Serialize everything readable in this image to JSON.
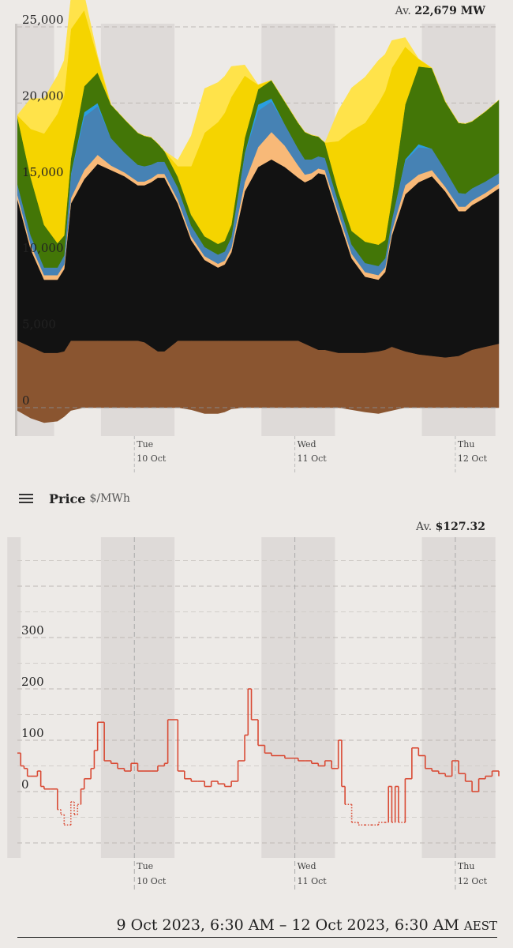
{
  "generation": {
    "average_prefix": "Av.",
    "average_value": "22,679 MW"
  },
  "price": {
    "title": "Price",
    "unit": "$/MWh",
    "average_prefix": "Av.",
    "average_value": "$127.32"
  },
  "date_range": {
    "text": "9 Oct 2023, 6:30 AM – 12 Oct 2023, 6:30 AM",
    "tz": "AEST"
  },
  "colors": {
    "background": "#edeae7",
    "night_band": "#dedad8",
    "brown_coal": "#8a5530",
    "black_coal": "#121212",
    "gas": "#f8b978",
    "hydro": "#4682b4",
    "battery": "#2a9ee0",
    "wind": "#437607",
    "solar_utility": "#f5d400",
    "solar_rooftop": "#ffe34a",
    "price_line": "#d94a34"
  },
  "chart_data": [
    {
      "type": "area",
      "stacked": true,
      "xlim": [
        0,
        72
      ],
      "ylim": [
        -2000,
        25000
      ],
      "y_ticks": [
        {
          "value": 0,
          "label": "0"
        },
        {
          "value": 5000,
          "label": "5,000"
        },
        {
          "value": 10000,
          "label": "10,000"
        },
        {
          "value": 15000,
          "label": "15,000"
        },
        {
          "value": 20000,
          "label": "20,000"
        },
        {
          "value": 25000,
          "label": "25,000"
        }
      ],
      "x_ticks": [
        {
          "hour": 17.5,
          "day": "Tue",
          "date": "10 Oct"
        },
        {
          "hour": 41.5,
          "day": "Wed",
          "date": "11 Oct"
        },
        {
          "hour": 65.5,
          "day": "Thu",
          "date": "12 Oct"
        }
      ],
      "night_bands": [
        [
          -6.5,
          5.5
        ],
        [
          12.5,
          23.5
        ],
        [
          36.5,
          47.5
        ],
        [
          60.5,
          71.5
        ]
      ],
      "grid": true,
      "x": [
        0,
        2,
        4,
        6,
        7,
        8,
        10,
        12,
        14,
        16,
        18,
        19,
        20,
        21,
        22,
        24,
        26,
        28,
        30,
        31,
        32,
        34,
        36,
        38,
        40,
        42,
        43,
        44,
        45,
        46,
        48,
        50,
        52,
        54,
        55,
        56,
        58,
        60,
        62,
        64,
        66,
        67,
        68,
        70,
        72
      ],
      "series": [
        {
          "key": "brown_coal",
          "values": [
            4400,
            4000,
            3600,
            3600,
            3700,
            4400,
            4400,
            4400,
            4400,
            4400,
            4400,
            4300,
            4000,
            3700,
            3700,
            4400,
            4400,
            4400,
            4400,
            4400,
            4400,
            4400,
            4400,
            4400,
            4400,
            4400,
            4200,
            4000,
            3800,
            3800,
            3600,
            3600,
            3600,
            3700,
            3800,
            4000,
            3700,
            3500,
            3400,
            3300,
            3400,
            3600,
            3800,
            4000,
            4200
          ]
        },
        {
          "key": "black_coal",
          "values": [
            9300,
            6400,
            4800,
            4800,
            5400,
            9000,
            10600,
            11600,
            11200,
            10800,
            10200,
            10300,
            10800,
            11400,
            11400,
            9000,
            6600,
            5300,
            4800,
            5000,
            5800,
            9800,
            11400,
            11900,
            11400,
            10700,
            10600,
            11000,
            11600,
            11500,
            8900,
            6200,
            5000,
            4700,
            5100,
            7300,
            10300,
            11300,
            11800,
            10900,
            9500,
            9300,
            9500,
            9800,
            10200
          ]
        },
        {
          "key": "gas",
          "values": [
            300,
            300,
            300,
            300,
            300,
            350,
            600,
            600,
            300,
            250,
            250,
            250,
            250,
            250,
            250,
            250,
            250,
            250,
            250,
            250,
            300,
            600,
            1300,
            1800,
            1400,
            800,
            500,
            400,
            300,
            300,
            300,
            300,
            300,
            300,
            300,
            300,
            600,
            500,
            400,
            300,
            300,
            300,
            300,
            300,
            300
          ]
        },
        {
          "key": "hydro",
          "values": [
            700,
            600,
            500,
            500,
            600,
            1500,
            3500,
            3200,
            1800,
            1300,
            1100,
            1000,
            900,
            800,
            800,
            800,
            700,
            600,
            600,
            600,
            700,
            1800,
            2400,
            2000,
            1400,
            1100,
            1000,
            900,
            800,
            800,
            700,
            600,
            600,
            600,
            600,
            700,
            1600,
            1800,
            1400,
            1100,
            900,
            850,
            800,
            750,
            700
          ]
        },
        {
          "key": "battery",
          "values": [
            0,
            0,
            0,
            0,
            0,
            100,
            300,
            200,
            0,
            0,
            0,
            0,
            0,
            0,
            0,
            0,
            0,
            0,
            0,
            0,
            0,
            100,
            400,
            200,
            0,
            0,
            0,
            0,
            0,
            0,
            0,
            0,
            0,
            0,
            0,
            0,
            100,
            200,
            0,
            0,
            0,
            0,
            0,
            0,
            0
          ]
        },
        {
          "key": "wind",
          "values": [
            4400,
            3800,
            2800,
            1600,
            1300,
            1000,
            1700,
            2000,
            2200,
            2200,
            2100,
            2000,
            1800,
            1200,
            700,
            700,
            700,
            700,
            700,
            700,
            800,
            1000,
            1000,
            1200,
            1500,
            1700,
            1800,
            1600,
            1300,
            1000,
            700,
            900,
            1400,
            1400,
            1200,
            1400,
            3600,
            5100,
            5300,
            4500,
            4600,
            4600,
            4400,
            4600,
            4800
          ]
        },
        {
          "key": "solar_utility",
          "values": [
            100,
            3200,
            6000,
            8500,
            9200,
            8500,
            5000,
            1000,
            0,
            0,
            0,
            0,
            0,
            0,
            0,
            700,
            3200,
            6800,
            8000,
            8400,
            8400,
            4100,
            300,
            0,
            0,
            0,
            0,
            0,
            0,
            0,
            3300,
            6600,
            7800,
            9300,
            9800,
            8600,
            3800,
            500,
            0,
            0,
            0,
            0,
            0,
            0,
            0
          ]
        },
        {
          "key": "solar_rooftop",
          "values": [
            0,
            2000,
            2300,
            2500,
            2300,
            2000,
            1000,
            100,
            0,
            0,
            0,
            0,
            0,
            0,
            0,
            400,
            2000,
            2900,
            2600,
            2400,
            2000,
            700,
            0,
            0,
            0,
            0,
            0,
            0,
            0,
            0,
            2000,
            2800,
            3000,
            2800,
            2400,
            1800,
            600,
            0,
            0,
            0,
            0,
            0,
            0,
            0,
            0
          ]
        }
      ],
      "negative_series": {
        "key": "brown_coal",
        "values": [
          -200,
          -700,
          -1000,
          -900,
          -600,
          -200,
          0,
          0,
          0,
          0,
          0,
          0,
          0,
          0,
          0,
          0,
          -150,
          -400,
          -400,
          -300,
          -100,
          0,
          0,
          0,
          0,
          0,
          0,
          0,
          0,
          0,
          0,
          -150,
          -300,
          -400,
          -300,
          -200,
          0,
          0,
          0,
          0,
          0,
          0,
          0,
          0,
          0
        ]
      }
    },
    {
      "type": "line",
      "step": true,
      "xlim": [
        0,
        72
      ],
      "ylim": [
        -125,
        475
      ],
      "y_ticks": [
        {
          "value": 0,
          "label": "0"
        },
        {
          "value": 100,
          "label": "100"
        },
        {
          "value": 200,
          "label": "200"
        },
        {
          "value": 300,
          "label": "300"
        }
      ],
      "x_ticks": [
        {
          "hour": 17.5,
          "day": "Tue",
          "date": "10 Oct"
        },
        {
          "hour": 41.5,
          "day": "Wed",
          "date": "11 Oct"
        },
        {
          "hour": 65.5,
          "day": "Thu",
          "date": "12 Oct"
        }
      ],
      "night_bands": [
        [
          -1.5,
          0.5
        ],
        [
          12.5,
          23.5
        ],
        [
          36.5,
          47.5
        ],
        [
          60.5,
          71.5
        ]
      ],
      "grid": true,
      "dotted_below_zero": true,
      "x": [
        0,
        0.5,
        1,
        1.5,
        2,
        3,
        3.5,
        4,
        5,
        6,
        6.5,
        7,
        8,
        8.5,
        9,
        9.5,
        10,
        11,
        11.5,
        12,
        13,
        14,
        15,
        16,
        17,
        18,
        19,
        20,
        21,
        22,
        22.5,
        24,
        25,
        26,
        27,
        28,
        29,
        30,
        31,
        32,
        33,
        34,
        34.5,
        35,
        36,
        37,
        38,
        40,
        42,
        43,
        44,
        45,
        46,
        47,
        48,
        48.5,
        49,
        50,
        51,
        52,
        53,
        54,
        55,
        55.5,
        56,
        56.5,
        57,
        58,
        59,
        60,
        61,
        62,
        63,
        64,
        65,
        66,
        67,
        68,
        69,
        70,
        71,
        72
      ],
      "values": [
        75,
        50,
        45,
        30,
        30,
        40,
        10,
        5,
        5,
        -35,
        -45,
        -65,
        -20,
        -45,
        -25,
        5,
        25,
        45,
        80,
        135,
        60,
        55,
        45,
        40,
        55,
        40,
        40,
        40,
        50,
        55,
        140,
        40,
        25,
        20,
        20,
        10,
        20,
        15,
        10,
        20,
        60,
        110,
        200,
        140,
        90,
        75,
        70,
        65,
        60,
        60,
        55,
        50,
        60,
        45,
        100,
        10,
        -25,
        -60,
        -65,
        -65,
        -65,
        -60,
        -60,
        10,
        -60,
        10,
        -60,
        25,
        85,
        70,
        45,
        40,
        35,
        30,
        60,
        35,
        20,
        0,
        25,
        30,
        40,
        30
      ]
    }
  ]
}
